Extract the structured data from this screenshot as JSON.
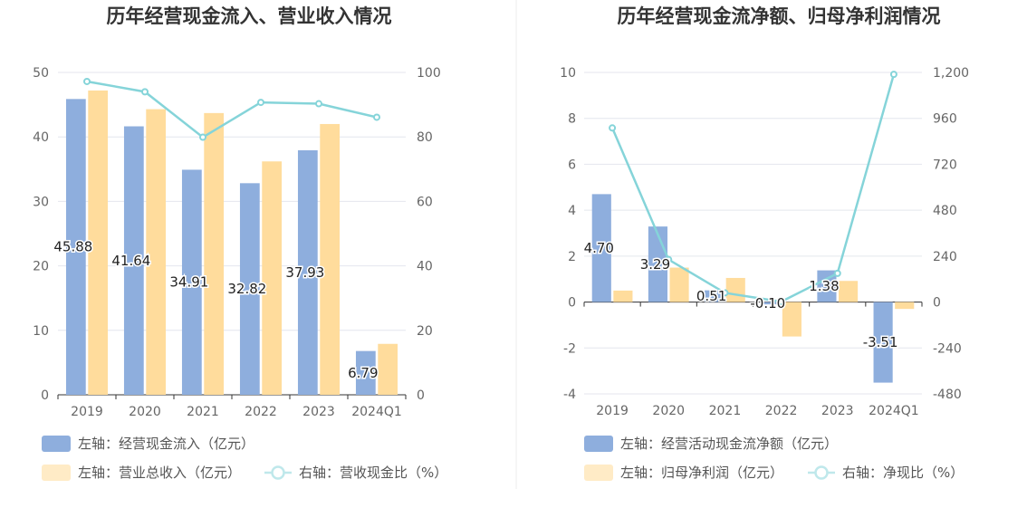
{
  "chart_data": [
    {
      "type": "bar",
      "title": "历年经营现金流入、营业收入情况",
      "categories": [
        "2019",
        "2020",
        "2021",
        "2022",
        "2023",
        "2024Q1"
      ],
      "left_axis": {
        "ylim": [
          0,
          50
        ],
        "ticks": [
          0,
          10,
          20,
          30,
          40,
          50
        ]
      },
      "right_axis": {
        "ylim": [
          0,
          100
        ],
        "ticks": [
          0,
          20,
          40,
          60,
          80,
          100
        ]
      },
      "series": [
        {
          "name": "左轴：经营现金流入（亿元）",
          "type": "bar",
          "axis": "left",
          "color": "#8eaedd",
          "values": [
            45.88,
            41.64,
            34.91,
            32.82,
            37.93,
            6.79
          ],
          "labels": [
            "45.88",
            "41.64",
            "34.91",
            "32.82",
            "37.93",
            "6.79"
          ]
        },
        {
          "name": "左轴：营业总收入（亿元）",
          "type": "bar",
          "axis": "left",
          "color": "#ffdc9c",
          "values": [
            47.2,
            44.3,
            43.7,
            36.2,
            42.0,
            7.9
          ]
        },
        {
          "name": "右轴：营收现金比（%）",
          "type": "line",
          "axis": "right",
          "color": "#85d4d9",
          "values": [
            97.2,
            94.0,
            79.9,
            90.7,
            90.3,
            86.1
          ]
        }
      ]
    },
    {
      "type": "bar",
      "title": "历年经营现金流净额、归母净利润情况",
      "categories": [
        "2019",
        "2020",
        "2021",
        "2022",
        "2023",
        "2024Q1"
      ],
      "left_axis": {
        "ylim": [
          -4,
          10
        ],
        "ticks": [
          -4,
          -2,
          0,
          2,
          4,
          6,
          8,
          10
        ],
        "tick_labels": [
          "-4",
          "-2",
          "0",
          "2",
          "4",
          "6",
          "8",
          "10"
        ]
      },
      "right_axis": {
        "ylim": [
          -480,
          1200
        ],
        "ticks": [
          -480,
          -240,
          0,
          240,
          480,
          720,
          960,
          1200
        ],
        "tick_labels": [
          "-480",
          "-240",
          "0",
          "240",
          "480",
          "720",
          "960",
          "1,200"
        ]
      },
      "series": [
        {
          "name": "左轴：经营活动现金流净额（亿元）",
          "type": "bar",
          "axis": "left",
          "color": "#8eaedd",
          "values": [
            4.7,
            3.29,
            0.51,
            -0.1,
            1.38,
            -3.51
          ],
          "labels": [
            "4.70",
            "3.29",
            "0.51",
            "-0.10",
            "1.38",
            "-3.51"
          ]
        },
        {
          "name": "左轴：归母净利润（亿元）",
          "type": "bar",
          "axis": "left",
          "color": "#ffdc9c",
          "values": [
            0.5,
            1.5,
            1.05,
            -1.5,
            0.92,
            -0.3
          ]
        },
        {
          "name": "右轴：净现比（%）",
          "type": "line",
          "axis": "right",
          "color": "#85d4d9",
          "values": [
            910,
            222,
            48,
            2,
            150,
            1190
          ]
        }
      ]
    }
  ]
}
